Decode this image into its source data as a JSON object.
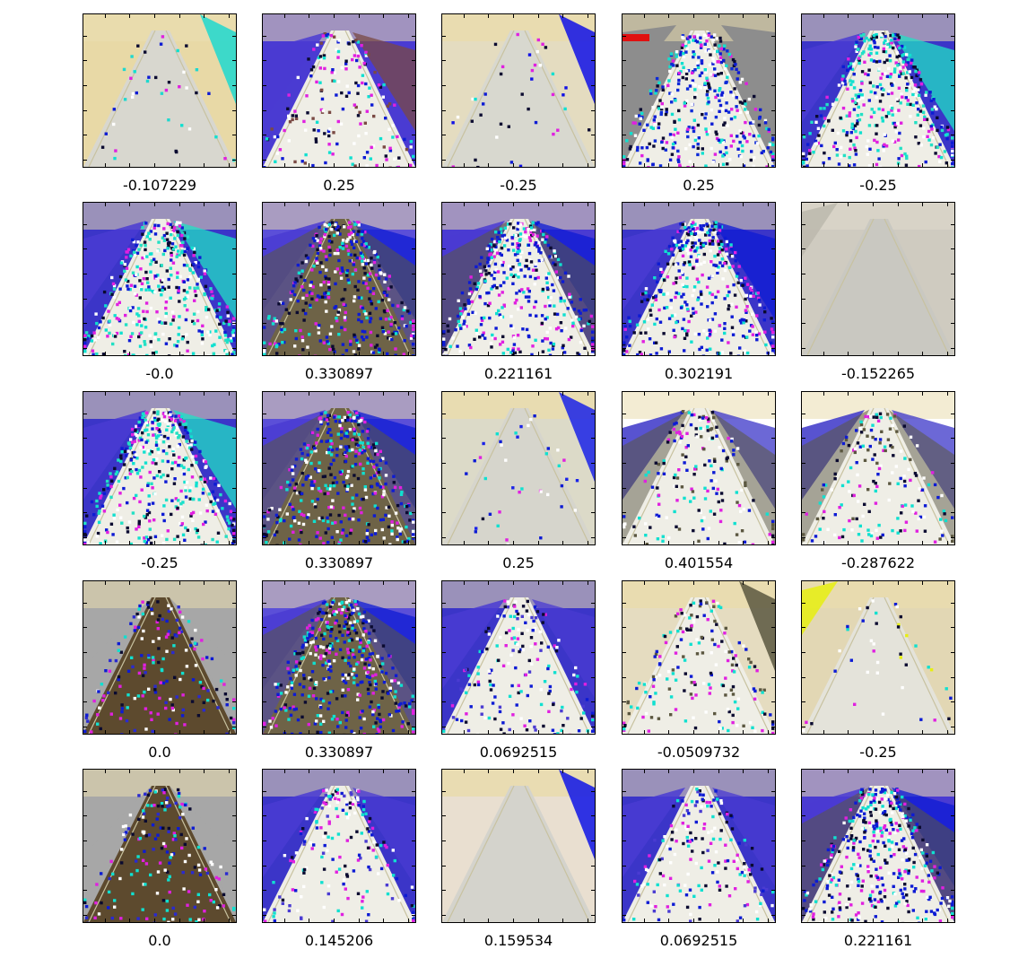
{
  "figure": {
    "rows": 5,
    "cols": 5,
    "images": [
      {
        "label": "-0.107229",
        "scene": "light",
        "pale": "#e8d9a6",
        "road": "#d8d7cf",
        "accent": "#1fd8cf",
        "noise": "low"
      },
      {
        "label": "0.25",
        "scene": "blue",
        "pale": "#4a3bd2",
        "road": "#efeee6",
        "accent": "#7a4a44",
        "noise": "mid"
      },
      {
        "label": "-0.25",
        "scene": "light",
        "pale": "#e4dcc0",
        "road": "#d8d8cf",
        "accent": "#1010e6",
        "noise": "low"
      },
      {
        "label": "0.25",
        "scene": "grayblue",
        "pale": "#8d8d8d",
        "road": "#efeee6",
        "accent": "#0c2bd8",
        "noise": "high"
      },
      {
        "label": "-0.25",
        "scene": "blue",
        "pale": "#3b35c8",
        "road": "#efeee6",
        "accent": "#22e0c4",
        "noise": "high"
      },
      {
        "label": "-0.0",
        "scene": "blue",
        "pale": "#3b35c8",
        "road": "#efeee6",
        "accent": "#22e0c4",
        "noise": "high"
      },
      {
        "label": "0.330897",
        "scene": "bluebrown",
        "pale": "#5b4fd8",
        "road": "#6e6347",
        "accent": "#0d1bd4",
        "noise": "high"
      },
      {
        "label": "0.221161",
        "scene": "bluebrown",
        "pale": "#4a3bd2",
        "road": "#efeee6",
        "accent": "#0d1bd4",
        "noise": "high"
      },
      {
        "label": "0.302191",
        "scene": "blue",
        "pale": "#3b35c8",
        "road": "#efeee6",
        "accent": "#0d1bd4",
        "noise": "high"
      },
      {
        "label": "-0.152265",
        "scene": "gray",
        "pale": "#cfcbc0",
        "road": "#c9c8c1",
        "accent": "#bcb8ad",
        "noise": "none"
      },
      {
        "label": "-0.25",
        "scene": "blue",
        "pale": "#3b35c8",
        "road": "#efeee6",
        "accent": "#22e0c4",
        "noise": "high"
      },
      {
        "label": "0.330897",
        "scene": "bluebrown",
        "pale": "#5b4fd8",
        "road": "#6e6347",
        "accent": "#0d1bd4",
        "noise": "high"
      },
      {
        "label": "0.25",
        "scene": "light",
        "pale": "#dcdac8",
        "road": "#d6d5cc",
        "accent": "#1a22e8",
        "noise": "low"
      },
      {
        "label": "0.401554",
        "scene": "darkedge",
        "pale": "#ffffff",
        "road": "#efeee6",
        "accent": "#5b5740",
        "noise": "mid"
      },
      {
        "label": "-0.287622",
        "scene": "darkedge",
        "pale": "#ffffff",
        "road": "#efeee6",
        "accent": "#5b5740",
        "noise": "mid"
      },
      {
        "label": "0.0",
        "scene": "brown",
        "pale": "#a7a7a7",
        "road": "#5d4a2e",
        "accent": "#2a2ad0",
        "noise": "mid"
      },
      {
        "label": "0.330897",
        "scene": "bluebrown",
        "pale": "#5b4fd8",
        "road": "#6e6347",
        "accent": "#0d1bd4",
        "noise": "high"
      },
      {
        "label": "0.0692515",
        "scene": "blue",
        "pale": "#3b35c8",
        "road": "#efeee6",
        "accent": "#4a3bd2",
        "noise": "mid"
      },
      {
        "label": "-0.0509732",
        "scene": "light",
        "pale": "#e5dcc0",
        "road": "#efeee6",
        "accent": "#5b5740",
        "noise": "mid"
      },
      {
        "label": "-0.25",
        "scene": "light",
        "pale": "#e2d7b4",
        "road": "#e4e3da",
        "accent": "#e6ef10",
        "noise": "low"
      },
      {
        "label": "0.0",
        "scene": "brown",
        "pale": "#a7a7a7",
        "road": "#5d4a2e",
        "accent": "#2a2ad0",
        "noise": "mid"
      },
      {
        "label": "0.145206",
        "scene": "blue",
        "pale": "#3b35c8",
        "road": "#efeee6",
        "accent": "#4a3bd2",
        "noise": "mid"
      },
      {
        "label": "0.159534",
        "scene": "light",
        "pale": "#e9dfd0",
        "road": "#d4d3cc",
        "accent": "#0e14e6",
        "noise": "none"
      },
      {
        "label": "0.0692515",
        "scene": "blue",
        "pale": "#3b35c8",
        "road": "#efeee6",
        "accent": "#4a3bd2",
        "noise": "mid"
      },
      {
        "label": "0.221161",
        "scene": "bluebrown",
        "pale": "#4a3bd2",
        "road": "#efeee6",
        "accent": "#0d1bd4",
        "noise": "high"
      }
    ]
  }
}
